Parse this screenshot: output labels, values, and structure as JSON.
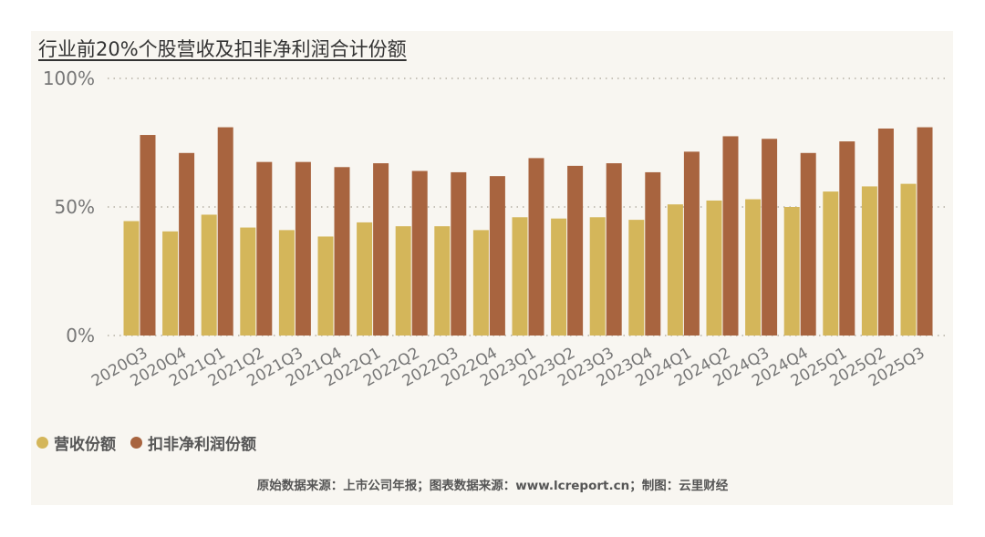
{
  "chart_data": {
    "type": "bar",
    "title": "行业前20%个股营收及扣非净利润合计份额",
    "categories": [
      "2020Q3",
      "2020Q4",
      "2021Q1",
      "2021Q2",
      "2021Q3",
      "2021Q4",
      "2022Q1",
      "2022Q2",
      "2022Q3",
      "2022Q4",
      "2023Q1",
      "2023Q2",
      "2023Q3",
      "2023Q4",
      "2024Q1",
      "2024Q2",
      "2024Q3",
      "2024Q4",
      "2025Q1",
      "2025Q2",
      "2025Q3"
    ],
    "series": [
      {
        "name": "营收份额",
        "color": "#d4b65a",
        "values": [
          44.5,
          40.5,
          47,
          42,
          41,
          38.5,
          44,
          42.5,
          42.5,
          41,
          46,
          45.5,
          46,
          45,
          51,
          52.5,
          53,
          50,
          56,
          58,
          59
        ]
      },
      {
        "name": "扣非净利润份额",
        "color": "#a8643f",
        "values": [
          78,
          71,
          81,
          67.5,
          67.5,
          65.5,
          67,
          64,
          63.5,
          62,
          69,
          66,
          67,
          63.5,
          71.5,
          77.5,
          76.5,
          71,
          75.5,
          80.5,
          81
        ]
      }
    ],
    "ylim": [
      0,
      100
    ],
    "yticks": [
      "0%",
      "50%",
      "100%"
    ],
    "ytick_values": [
      0,
      50,
      100
    ],
    "grid": true,
    "legend_position": "bottom-left"
  },
  "source_text": "原始数据来源：上市公司年报；图表数据来源：www.lcreport.cn；制图：云里财经"
}
